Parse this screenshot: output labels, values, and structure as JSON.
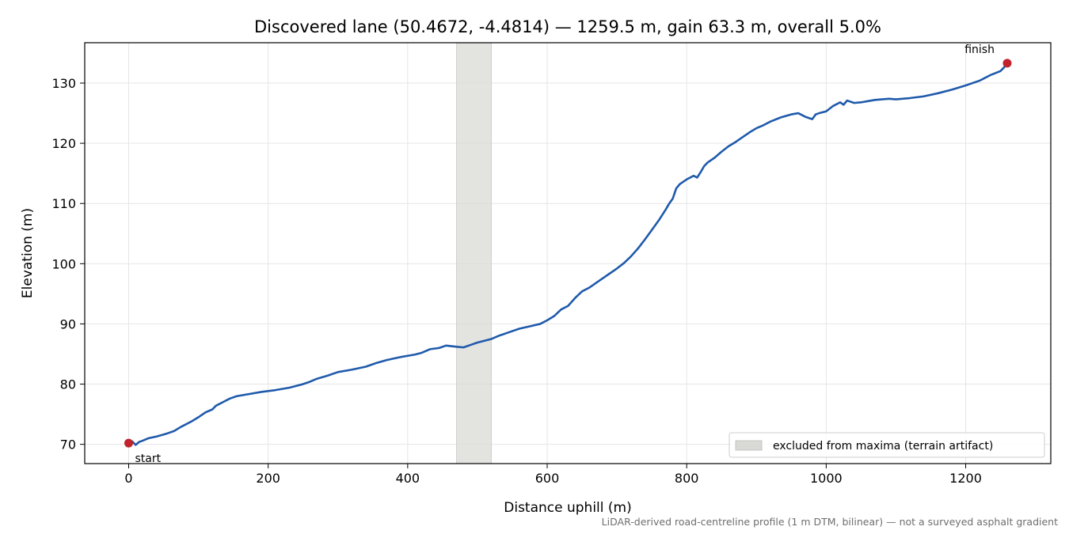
{
  "chart_data": {
    "type": "line",
    "title": "Discovered lane (50.4672, -4.4814) — 1259.5 m, gain 63.3 m, overall 5.0%",
    "xlabel": "Distance uphill (m)",
    "ylabel": "Elevation (m)",
    "xlim": [
      -63,
      1322
    ],
    "ylim": [
      66.8,
      136.7
    ],
    "xticks": [
      0,
      200,
      400,
      600,
      800,
      1000,
      1200
    ],
    "yticks": [
      70,
      80,
      90,
      100,
      110,
      120,
      130
    ],
    "grid": true,
    "series": [
      {
        "color": "#1f5aab",
        "points": [
          [
            0,
            70.2
          ],
          [
            5,
            70.5
          ],
          [
            10,
            69.9
          ],
          [
            15,
            70.4
          ],
          [
            20,
            70.6
          ],
          [
            28,
            71.0
          ],
          [
            40,
            71.3
          ],
          [
            55,
            71.8
          ],
          [
            65,
            72.2
          ],
          [
            75,
            72.9
          ],
          [
            90,
            73.8
          ],
          [
            100,
            74.5
          ],
          [
            110,
            75.3
          ],
          [
            120,
            75.8
          ],
          [
            125,
            76.4
          ],
          [
            135,
            77.0
          ],
          [
            145,
            77.6
          ],
          [
            155,
            78.0
          ],
          [
            170,
            78.3
          ],
          [
            190,
            78.7
          ],
          [
            210,
            79.0
          ],
          [
            230,
            79.4
          ],
          [
            250,
            80.0
          ],
          [
            260,
            80.4
          ],
          [
            270,
            80.9
          ],
          [
            285,
            81.4
          ],
          [
            300,
            82.0
          ],
          [
            320,
            82.4
          ],
          [
            340,
            82.9
          ],
          [
            355,
            83.5
          ],
          [
            370,
            84.0
          ],
          [
            390,
            84.5
          ],
          [
            410,
            84.9
          ],
          [
            420,
            85.2
          ],
          [
            432,
            85.8
          ],
          [
            445,
            86.0
          ],
          [
            455,
            86.4
          ],
          [
            470,
            86.2
          ],
          [
            480,
            86.1
          ],
          [
            490,
            86.5
          ],
          [
            500,
            86.9
          ],
          [
            510,
            87.2
          ],
          [
            520,
            87.5
          ],
          [
            530,
            88.0
          ],
          [
            545,
            88.6
          ],
          [
            560,
            89.2
          ],
          [
            575,
            89.6
          ],
          [
            590,
            90.0
          ],
          [
            600,
            90.6
          ],
          [
            610,
            91.3
          ],
          [
            620,
            92.4
          ],
          [
            630,
            93.0
          ],
          [
            640,
            94.3
          ],
          [
            650,
            95.4
          ],
          [
            660,
            96.0
          ],
          [
            670,
            96.8
          ],
          [
            680,
            97.6
          ],
          [
            690,
            98.4
          ],
          [
            700,
            99.2
          ],
          [
            710,
            100.1
          ],
          [
            720,
            101.2
          ],
          [
            730,
            102.5
          ],
          [
            740,
            104.0
          ],
          [
            750,
            105.6
          ],
          [
            760,
            107.2
          ],
          [
            770,
            109.0
          ],
          [
            775,
            110.0
          ],
          [
            780,
            110.8
          ],
          [
            785,
            112.5
          ],
          [
            790,
            113.2
          ],
          [
            800,
            114.0
          ],
          [
            810,
            114.6
          ],
          [
            815,
            114.3
          ],
          [
            820,
            115.2
          ],
          [
            825,
            116.2
          ],
          [
            830,
            116.8
          ],
          [
            840,
            117.6
          ],
          [
            850,
            118.6
          ],
          [
            860,
            119.5
          ],
          [
            870,
            120.2
          ],
          [
            880,
            121.0
          ],
          [
            890,
            121.8
          ],
          [
            900,
            122.5
          ],
          [
            910,
            123.0
          ],
          [
            920,
            123.6
          ],
          [
            935,
            124.3
          ],
          [
            950,
            124.8
          ],
          [
            960,
            125.0
          ],
          [
            970,
            124.4
          ],
          [
            980,
            124.0
          ],
          [
            985,
            124.8
          ],
          [
            990,
            125.0
          ],
          [
            1000,
            125.3
          ],
          [
            1010,
            126.2
          ],
          [
            1020,
            126.8
          ],
          [
            1025,
            126.4
          ],
          [
            1030,
            127.1
          ],
          [
            1040,
            126.7
          ],
          [
            1050,
            126.8
          ],
          [
            1060,
            127.0
          ],
          [
            1070,
            127.2
          ],
          [
            1080,
            127.3
          ],
          [
            1090,
            127.4
          ],
          [
            1100,
            127.3
          ],
          [
            1120,
            127.5
          ],
          [
            1140,
            127.8
          ],
          [
            1160,
            128.3
          ],
          [
            1180,
            128.9
          ],
          [
            1200,
            129.6
          ],
          [
            1220,
            130.4
          ],
          [
            1235,
            131.3
          ],
          [
            1250,
            132.0
          ],
          [
            1255,
            132.6
          ],
          [
            1259.5,
            133.3
          ]
        ]
      }
    ],
    "markers": [
      {
        "x": 0,
        "y": 70.2,
        "label": "start",
        "color": "#c0232b"
      },
      {
        "x": 1259.5,
        "y": 133.3,
        "label": "finish",
        "color": "#c0232b"
      }
    ],
    "shaded_region": {
      "x_from": 470,
      "x_to": 520,
      "label": "excluded from maxima (terrain artifact)",
      "color": "#d9d9d6"
    },
    "legend_placement": "bottom-right",
    "footnote": "LiDAR-derived road-centreline profile (1 m DTM, bilinear) — not a surveyed asphalt gradient"
  }
}
